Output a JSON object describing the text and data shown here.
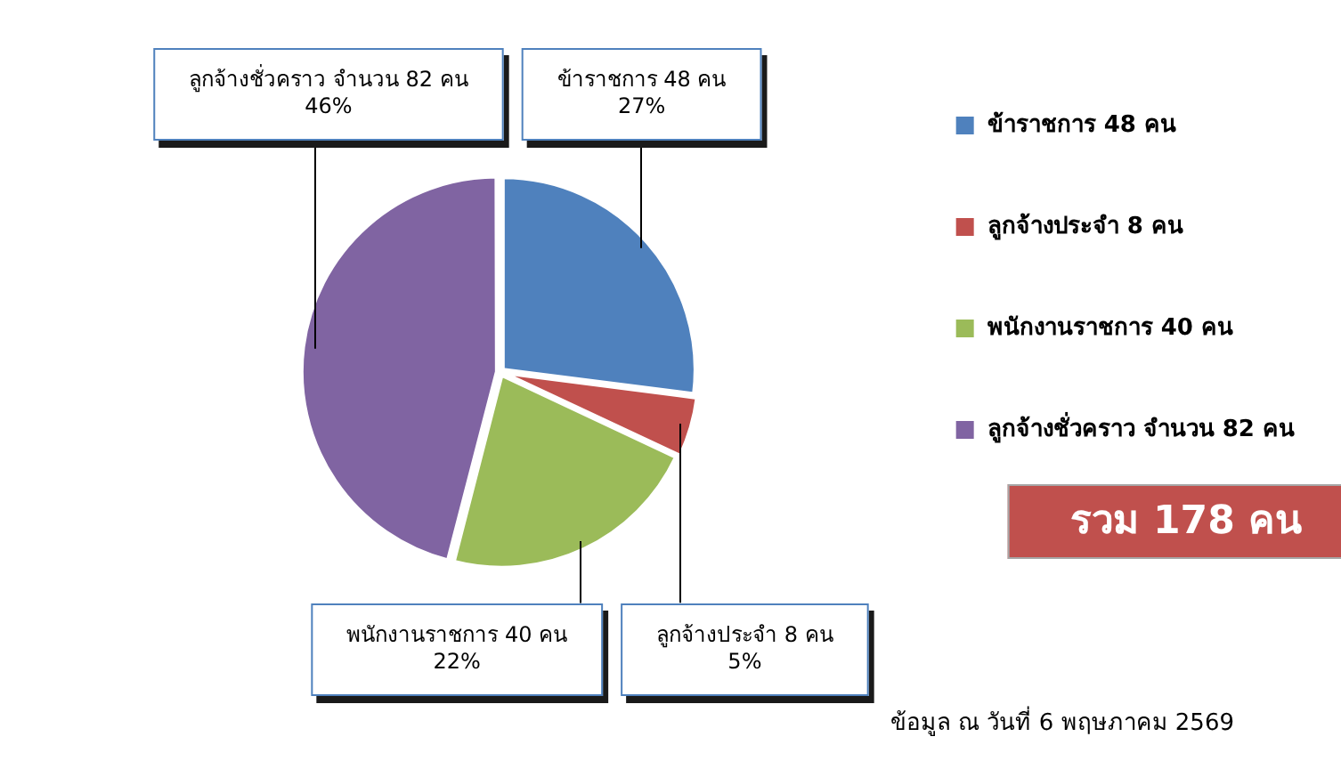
{
  "chart_data": {
    "type": "pie",
    "categories": [
      "ข้าราชการ 48 คน",
      "ลูกจ้างประจำ 8 คน",
      "พนักงานราชการ 40 คน",
      "ลูกจ้างชั่วคราว จำนวน 82 คน"
    ],
    "values": [
      27,
      5,
      22,
      46
    ],
    "colors": [
      "#4f81bd",
      "#c0504d",
      "#9bbb59",
      "#8064a2"
    ],
    "value_labels": [
      "27%",
      "5%",
      "22%",
      "46%"
    ],
    "legend": "right",
    "annotations": [
      "รวม 178 คน",
      "ข้อมูล ณ วันที่ 6 พฤษภาคม 2569"
    ]
  }
}
